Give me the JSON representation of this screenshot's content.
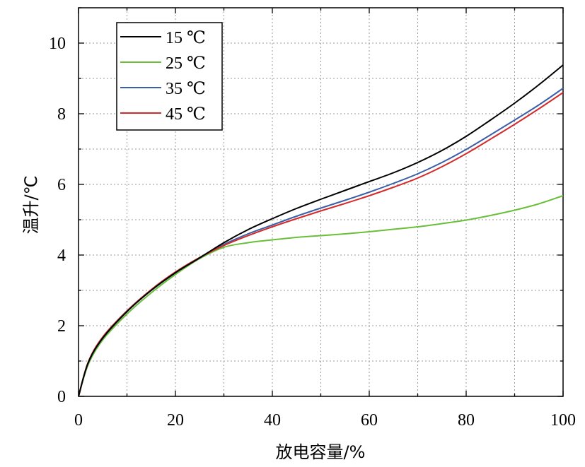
{
  "chart_data": {
    "type": "line",
    "xlabel": "放电容量/%",
    "ylabel": "温升/℃",
    "xlim": [
      0,
      100
    ],
    "ylim": [
      0,
      11
    ],
    "xticks": [
      0,
      20,
      40,
      60,
      80,
      100
    ],
    "yticks": [
      0,
      2,
      4,
      6,
      8,
      10
    ],
    "grid": true,
    "legend_position": "top-left",
    "x": [
      0,
      2,
      5,
      10,
      15,
      20,
      25,
      30,
      35,
      40,
      45,
      50,
      55,
      60,
      65,
      70,
      75,
      80,
      85,
      90,
      95,
      100
    ],
    "series": [
      {
        "name": "15 ℃",
        "color": "#000000",
        "values": [
          0,
          0.95,
          1.65,
          2.4,
          3.0,
          3.5,
          3.92,
          4.35,
          4.72,
          5.03,
          5.32,
          5.58,
          5.83,
          6.08,
          6.33,
          6.62,
          6.96,
          7.36,
          7.82,
          8.3,
          8.82,
          9.38
        ]
      },
      {
        "name": "25 ℃",
        "color": "#6abf3a",
        "values": [
          0,
          0.9,
          1.6,
          2.33,
          2.93,
          3.45,
          3.9,
          4.22,
          4.35,
          4.43,
          4.5,
          4.55,
          4.6,
          4.66,
          4.73,
          4.8,
          4.89,
          4.99,
          5.12,
          5.27,
          5.45,
          5.68
        ]
      },
      {
        "name": "35 ℃",
        "color": "#3a5fa8",
        "values": [
          0,
          0.95,
          1.65,
          2.4,
          3.0,
          3.5,
          3.93,
          4.3,
          4.6,
          4.85,
          5.1,
          5.33,
          5.55,
          5.78,
          6.03,
          6.3,
          6.62,
          6.99,
          7.4,
          7.82,
          8.25,
          8.72
        ]
      },
      {
        "name": "45 ℃",
        "color": "#d42a2a",
        "values": [
          0,
          0.97,
          1.68,
          2.42,
          3.02,
          3.52,
          3.93,
          4.27,
          4.55,
          4.8,
          5.03,
          5.25,
          5.46,
          5.68,
          5.92,
          6.18,
          6.5,
          6.87,
          7.28,
          7.7,
          8.14,
          8.6
        ]
      }
    ]
  }
}
